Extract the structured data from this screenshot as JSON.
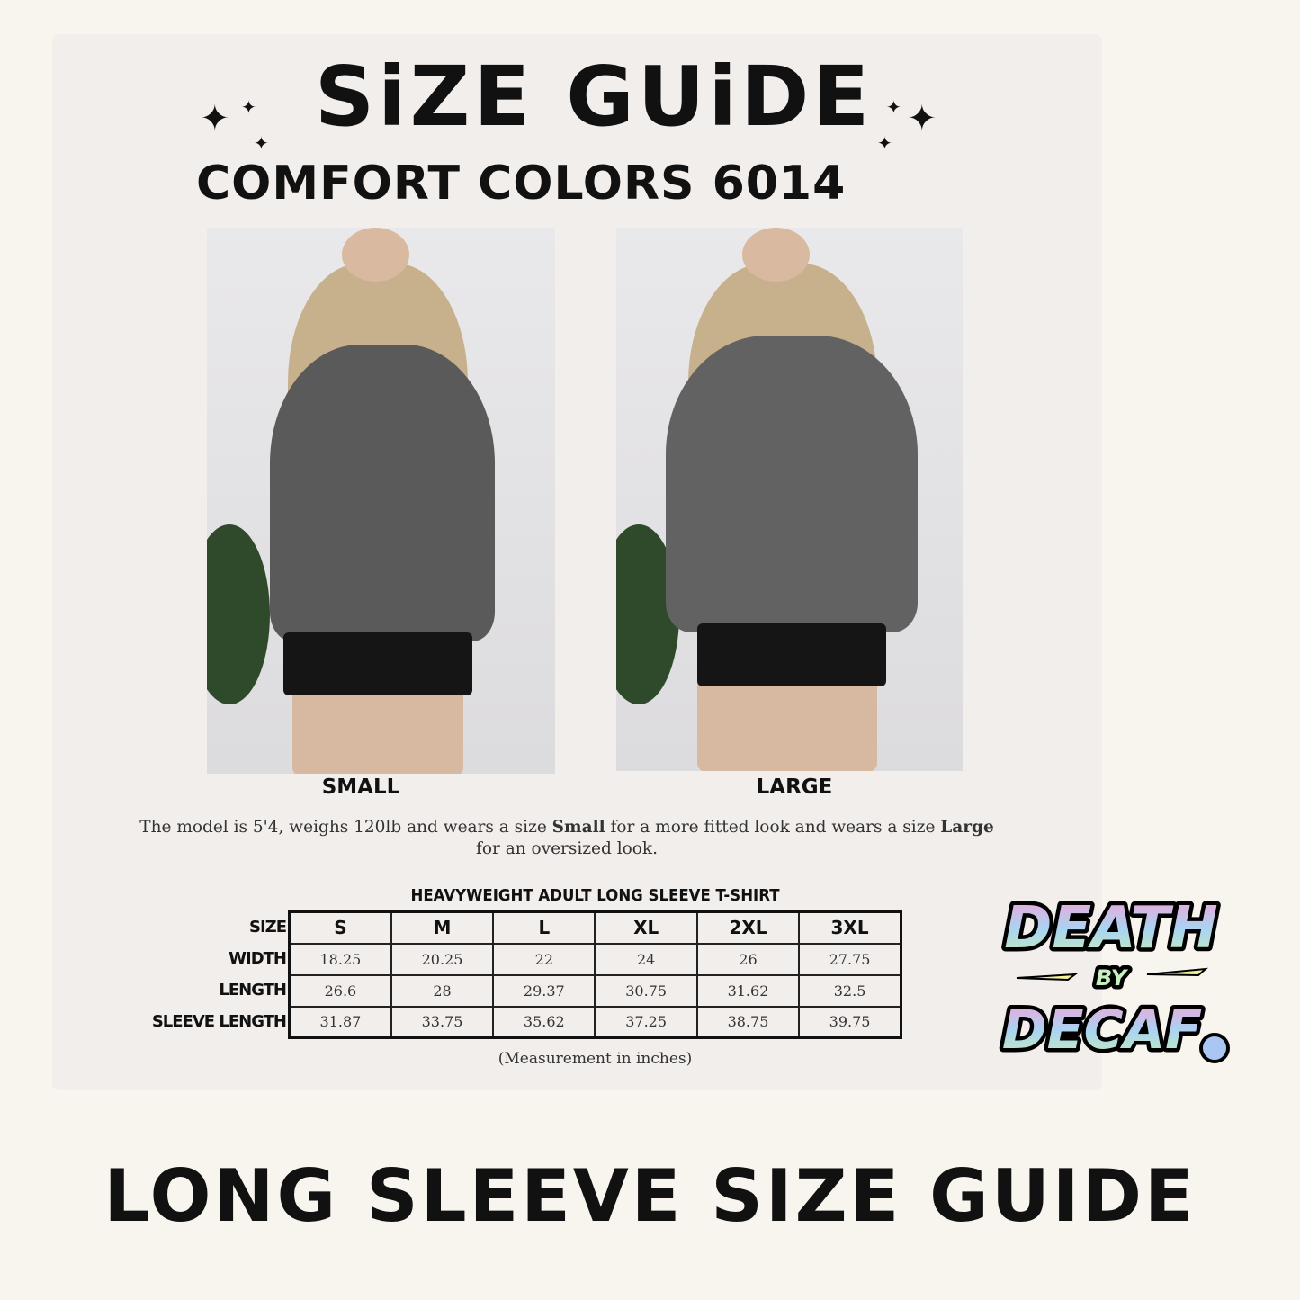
{
  "header": {
    "title": "SiZE GUiDE",
    "subtitle": "COMFORT COLORS 6014",
    "sparkle_icon": "four-point-star"
  },
  "photos": [
    {
      "caption": "SMALL"
    },
    {
      "caption": "LARGE"
    }
  ],
  "description": {
    "part1": "The model is 5'4, weighs 120lb and wears a size ",
    "bold1": "Small",
    "part2": " for a more fitted look and wears a size ",
    "bold2": "Large",
    "part3": " for an oversized look."
  },
  "table": {
    "title": "HEAVYWEIGHT ADULT LONG SLEEVE T-SHIRT",
    "row_labels": [
      "SIZE",
      "WIDTH",
      "LENGTH",
      "SLEEVE LENGTH"
    ],
    "sizes": [
      "S",
      "M",
      "L",
      "XL",
      "2XL",
      "3XL"
    ],
    "rows": [
      [
        "18.25",
        "20.25",
        "22",
        "24",
        "26",
        "27.75"
      ],
      [
        "26.6",
        "28",
        "29.37",
        "30.75",
        "31.62",
        "32.5"
      ],
      [
        "31.87",
        "33.75",
        "35.62",
        "37.25",
        "38.75",
        "39.75"
      ]
    ],
    "note": "(Measurement in inches)"
  },
  "logo": {
    "line1": "DEATH",
    "line2": "BY",
    "line3": "DECAF",
    "colors": [
      "#f7a1d6",
      "#a9c7f2",
      "#b6f0c0",
      "#f5f39a"
    ]
  },
  "footer": {
    "title": "LONG SLEEVE SIZE GUIDE"
  }
}
